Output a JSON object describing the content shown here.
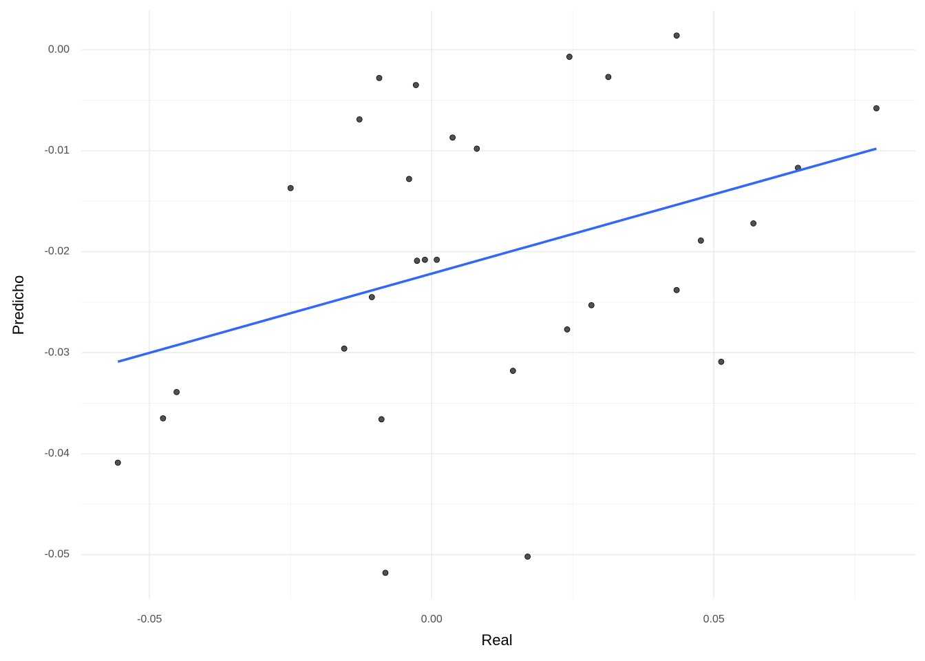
{
  "chart_data": {
    "type": "scatter",
    "xlabel": "Real",
    "ylabel": "Predicho",
    "x": [
      -0.0556,
      -0.0476,
      -0.0452,
      -0.025,
      -0.0155,
      -0.0128,
      -0.0106,
      -0.0093,
      -0.0089,
      -0.0082,
      -0.004,
      -0.0028,
      -0.0026,
      -0.0012,
      0.0009,
      0.0037,
      0.008,
      0.0144,
      0.017,
      0.024,
      0.0244,
      0.0283,
      0.0313,
      0.0434,
      0.0434,
      0.0477,
      0.0513,
      0.057,
      0.0649,
      0.0788
    ],
    "y": [
      -0.0409,
      -0.0365,
      -0.0339,
      -0.0137,
      -0.0296,
      -0.0069,
      -0.0245,
      -0.0028,
      -0.0366,
      -0.0518,
      -0.0128,
      -0.0035,
      -0.0209,
      -0.0208,
      -0.0208,
      -0.0087,
      -0.0098,
      -0.0318,
      -0.0502,
      -0.0277,
      -0.0007,
      -0.0253,
      -0.0027,
      0.0014,
      -0.0238,
      -0.0189,
      -0.0309,
      -0.0172,
      -0.0117,
      -0.0058
    ],
    "color": "#333333",
    "trend": {
      "x": [
        -0.0556,
        0.0788
      ],
      "y": [
        -0.0309,
        -0.0098
      ],
      "color": "#3366FF"
    },
    "xlim": [
      -0.0621,
      0.0857
    ],
    "ylim": [
      -0.0544,
      0.0039
    ],
    "xticks": [
      {
        "value": -0.05,
        "label": "-0.05"
      },
      {
        "value": 0,
        "label": "0.00"
      },
      {
        "value": 0.05,
        "label": "0.05"
      }
    ],
    "yticks": [
      {
        "value": 0,
        "label": "0.00"
      },
      {
        "value": -0.01,
        "label": "-0.01"
      },
      {
        "value": -0.02,
        "label": "-0.02"
      },
      {
        "value": -0.03,
        "label": "-0.03"
      },
      {
        "value": -0.04,
        "label": "-0.04"
      },
      {
        "value": -0.05,
        "label": "-0.05"
      }
    ],
    "xminor": [
      -0.025,
      0.025,
      0.075
    ],
    "yminor": [
      -0.005,
      -0.015,
      -0.025,
      -0.035,
      -0.045
    ],
    "grid": true
  }
}
